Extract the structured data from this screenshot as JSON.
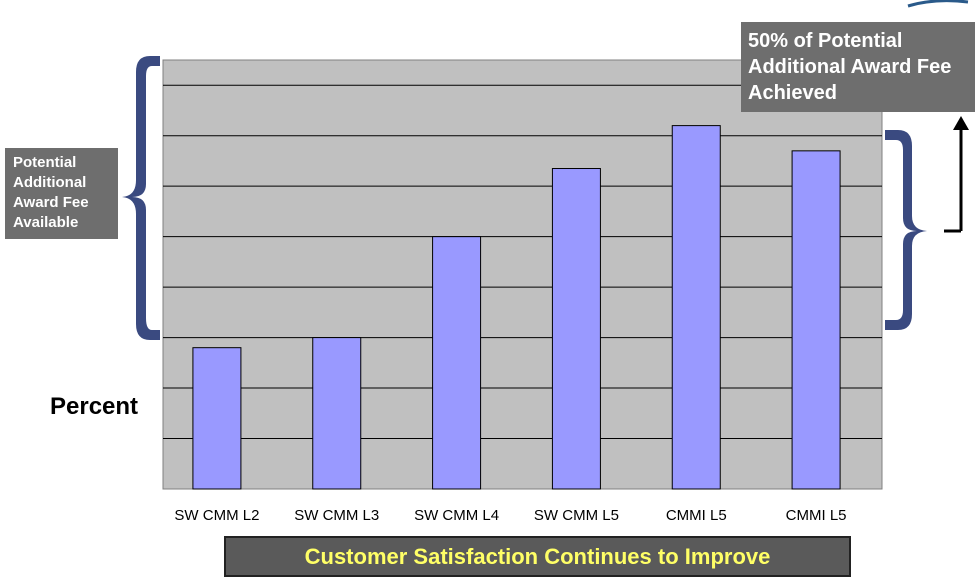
{
  "chart_data": {
    "type": "bar",
    "categories": [
      "SW CMM L2",
      "SW CMM L3",
      "SW CMM L4",
      "SW CMM L5",
      "CMMI L5",
      "CMMI L5"
    ],
    "values": [
      2.8,
      3.0,
      5.0,
      6.35,
      7.2,
      6.7
    ],
    "ylabel": "Percent",
    "ylim": [
      0,
      8.5
    ],
    "grid": true,
    "colors": {
      "bar": "#9999ff",
      "plot_bg": "#c0c0c0",
      "brace": "#3a4a80"
    }
  },
  "annotations": {
    "left_callout": "Potential\nAdditional\nAward Fee\nAvailable",
    "right_callout": "50% of Potential\nAdditional Award Fee\nAchieved"
  },
  "banner": {
    "text": "Customer Satisfaction Continues to Improve"
  }
}
